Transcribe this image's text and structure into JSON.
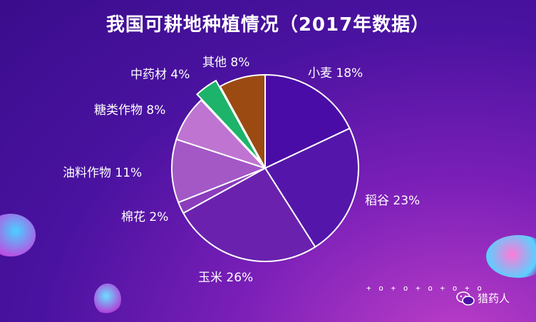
{
  "title": "我国可耕地种植情况（2017年数据）",
  "watermark": {
    "text": "猎药人",
    "icon": "wechat-icon"
  },
  "decor": {
    "dots": "+ o + o + o + o + o"
  },
  "chart_data": {
    "type": "pie",
    "title": "我国可耕地种植情况（2017年数据）",
    "slices": [
      {
        "label": "小麦",
        "value": 18,
        "display": "小麦 18%",
        "color": "#4a0ca6"
      },
      {
        "label": "稻谷",
        "value": 23,
        "display": "稻谷 23%",
        "color": "#5416aa"
      },
      {
        "label": "玉米",
        "value": 26,
        "display": "玉米 26%",
        "color": "#6a22ae"
      },
      {
        "label": "棉花",
        "value": 2,
        "display": "棉花 2%",
        "color": "#8a3cbc"
      },
      {
        "label": "油料作物",
        "value": 11,
        "display": "油料作物 11%",
        "color": "#a358c6"
      },
      {
        "label": "糖类作物",
        "value": 8,
        "display": "糖类作物 8%",
        "color": "#bf74d2"
      },
      {
        "label": "中药材",
        "value": 4,
        "display": "中药材 4%",
        "color": "#1db36a",
        "exploded": true
      },
      {
        "label": "其他",
        "value": 8,
        "display": "其他 8%",
        "color": "#9b4a12"
      }
    ],
    "unit": "%",
    "start": "12 o'clock, clockwise",
    "legend": "none (labels beside slices)"
  }
}
